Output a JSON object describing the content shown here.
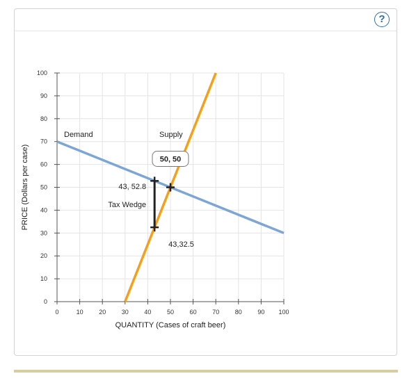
{
  "help": {
    "label": "?"
  },
  "chart_data": {
    "type": "line",
    "xlabel": "QUANTITY (Cases of craft beer)",
    "ylabel": "PRICE (Dollars per case)",
    "xlim": [
      0,
      100
    ],
    "ylim": [
      0,
      100
    ],
    "xticks": [
      0,
      10,
      20,
      30,
      40,
      50,
      60,
      70,
      80,
      90,
      100
    ],
    "yticks": [
      0,
      10,
      20,
      30,
      40,
      50,
      60,
      70,
      80,
      90,
      100
    ],
    "grid": true,
    "series": [
      {
        "name": "Demand",
        "color": "#7ea6d3",
        "points": [
          [
            0,
            70
          ],
          [
            100,
            30
          ]
        ]
      },
      {
        "name": "Supply",
        "color": "#f5a01a",
        "points": [
          [
            30,
            0
          ],
          [
            70,
            100
          ]
        ]
      }
    ],
    "equilibrium": {
      "x": 50,
      "y": 50,
      "label": "50, 50"
    },
    "tax_wedge": {
      "label": "Tax Wedge",
      "x": 43,
      "top": 52.8,
      "bottom": 32.5,
      "top_label": "43, 52.8",
      "bottom_label": "43,32.5"
    }
  }
}
